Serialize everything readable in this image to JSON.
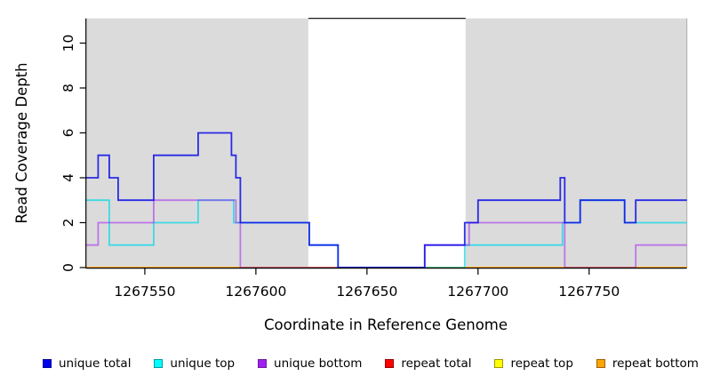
{
  "figure": {
    "background": "#ffffff"
  },
  "chart_data": {
    "type": "line",
    "subtype": "step-coverage",
    "title": "",
    "xlabel": "Coordinate in Reference Genome",
    "ylabel": "Read Coverage Depth",
    "xlim": [
      1267523.5,
      1267794
    ],
    "ylim": [
      0,
      11.1
    ],
    "xticks": [
      1267550,
      1267600,
      1267650,
      1267700,
      1267750
    ],
    "yticks": [
      0,
      2,
      4,
      6,
      8,
      10
    ],
    "grid": false,
    "legend_position": "bottom",
    "shaded_regions": [
      {
        "x0": 1267523.5,
        "x1": 1267623.6,
        "color": "#dbdbdb"
      },
      {
        "x0": 1267694.4,
        "x1": 1267794.0,
        "color": "#dbdbdb"
      }
    ],
    "gap_top_border_color": "#000000",
    "series": [
      {
        "name": "unique total",
        "color": "#0000EE",
        "draw_color": "rgba(10,10,230,0.85)",
        "steps": [
          [
            1267523.5,
            4
          ],
          [
            1267529,
            5
          ],
          [
            1267534,
            4
          ],
          [
            1267538,
            3
          ],
          [
            1267554,
            5
          ],
          [
            1267574,
            6
          ],
          [
            1267589,
            5
          ],
          [
            1267591,
            4
          ],
          [
            1267593,
            2
          ],
          [
            1267624,
            1
          ],
          [
            1267637,
            0
          ],
          [
            1267676,
            1
          ],
          [
            1267694,
            2
          ],
          [
            1267700,
            3
          ],
          [
            1267737,
            4
          ],
          [
            1267739,
            2
          ],
          [
            1267746,
            3
          ],
          [
            1267766,
            2
          ],
          [
            1267771,
            3
          ],
          [
            1267794,
            3
          ]
        ]
      },
      {
        "name": "unique top",
        "color": "#00FFFF",
        "draw_color": "rgba(0,216,230,0.72)",
        "steps": [
          [
            1267523.5,
            3
          ],
          [
            1267534,
            1
          ],
          [
            1267554,
            2
          ],
          [
            1267574,
            3
          ],
          [
            1267590,
            2
          ],
          [
            1267624,
            1
          ],
          [
            1267637,
            0
          ],
          [
            1267694,
            1
          ],
          [
            1267738,
            2
          ],
          [
            1267746,
            3
          ],
          [
            1267766,
            2
          ],
          [
            1267794,
            2
          ]
        ]
      },
      {
        "name": "unique bottom",
        "color": "#A020F0",
        "draw_color": "rgba(160,32,240,0.55)",
        "steps": [
          [
            1267523.5,
            1
          ],
          [
            1267529,
            2
          ],
          [
            1267554,
            3
          ],
          [
            1267591,
            2
          ],
          [
            1267593,
            0
          ],
          [
            1267676,
            1
          ],
          [
            1267696,
            2
          ],
          [
            1267739,
            0
          ],
          [
            1267771,
            1
          ],
          [
            1267794,
            1
          ]
        ]
      },
      {
        "name": "repeat total",
        "color": "#FF0000",
        "draw_color": "#FF0000",
        "steps": [
          [
            1267523.5,
            0
          ],
          [
            1267794,
            0
          ]
        ]
      },
      {
        "name": "repeat top",
        "color": "#FFFF00",
        "draw_color": "#FFFF00",
        "steps": [
          [
            1267523.5,
            0
          ],
          [
            1267794,
            0
          ]
        ]
      },
      {
        "name": "repeat bottom",
        "color": "#FFA500",
        "draw_color": "#FFA500",
        "steps": [
          [
            1267523.5,
            0
          ],
          [
            1267794,
            0
          ]
        ]
      }
    ],
    "draw_order": [
      3,
      4,
      5,
      1,
      2,
      0
    ]
  },
  "legend": {
    "items": [
      {
        "label": "unique total",
        "fill": "#0000EE",
        "border": "#00009A"
      },
      {
        "label": "unique top",
        "fill": "#00FFFF",
        "border": "#009AA0"
      },
      {
        "label": "unique bottom",
        "fill": "#A020F0",
        "border": "#6A1B9A"
      },
      {
        "label": "repeat total",
        "fill": "#FF0000",
        "border": "#990000"
      },
      {
        "label": "repeat top",
        "fill": "#FFFF00",
        "border": "#999900"
      },
      {
        "label": "repeat bottom",
        "fill": "#FFA500",
        "border": "#A06000"
      }
    ]
  }
}
